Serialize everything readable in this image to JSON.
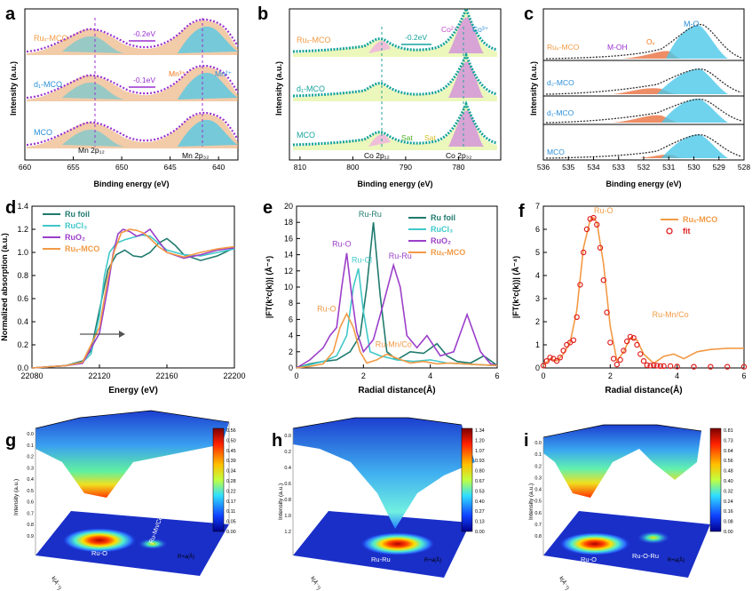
{
  "figure": {
    "colors": {
      "ruFoil": "#1f7a6e",
      "rucl3": "#41c8c8",
      "ruo2": "#9b3fc9",
      "ruxMco": "#f29a45",
      "fitRed": "#e02020",
      "envelope": "#9b30d0",
      "teal": "#17a39b",
      "tealDark": "#2aa39a"
    }
  },
  "chart_data": [
    {
      "panel": "a",
      "type": "line",
      "title": "",
      "xlabel": "Binding energy (eV)",
      "ylabel": "Intensity (a.u.)",
      "xlim": [
        660,
        638
      ],
      "xticks": [
        660,
        655,
        650,
        645,
        640
      ],
      "xtick_labels": [
        "660",
        "655",
        "650",
        "645",
        "640"
      ],
      "series_labels": [
        "Ruₓ-MCO",
        "d₁-MCO",
        "MCO"
      ],
      "annotations": [
        "-0.2eV",
        "-0.1eV",
        "Mn³⁺",
        "Mn²⁺",
        "Mn 2p₁₂",
        "Mn 2p₃₂"
      ]
    },
    {
      "panel": "b",
      "type": "line",
      "xlabel": "Binding energy (eV)",
      "ylabel": "Intensity (a.u.)",
      "xlim": [
        812,
        772
      ],
      "xticks": [
        810,
        800,
        790,
        780
      ],
      "xtick_labels": [
        "810",
        "800",
        "790",
        "780"
      ],
      "series_labels": [
        "Ruₓ-MCO",
        "d₁-MCO",
        "MCO"
      ],
      "annotations": [
        "-0.2eV",
        "Co²⁺",
        "Co³⁺",
        "Sat",
        "Sat",
        "Co 2p₁₂",
        "Co 2p₃₂"
      ]
    },
    {
      "panel": "c",
      "type": "line",
      "xlabel": "Binding energy (eV)",
      "ylabel": "Intensity (a.u.)",
      "xlim": [
        536,
        528
      ],
      "xticks": [
        536,
        535,
        534,
        533,
        532,
        531,
        530,
        529,
        528
      ],
      "xtick_labels": [
        "536",
        "535",
        "534",
        "533",
        "532",
        "531",
        "530",
        "529",
        "528"
      ],
      "series_labels": [
        "Ruₓ-MCO",
        "d₂-MCO",
        "d₁-MCO",
        "MCO"
      ],
      "annotations": [
        "M-O",
        "M-OH",
        "Oᵥ"
      ]
    },
    {
      "panel": "d",
      "type": "line",
      "xlabel": "Energy (eV)",
      "ylabel": "Normalized absorption (a.u.)",
      "xlim": [
        22080,
        22200
      ],
      "ylim": [
        0,
        1.4
      ],
      "xticks": [
        22080,
        22120,
        22160,
        22200
      ],
      "xtick_labels": [
        "22080",
        "22120",
        "22160",
        "22200"
      ],
      "yticks": [
        0,
        0.2,
        0.4,
        0.6,
        0.8,
        1.0,
        1.2,
        1.4
      ],
      "ytick_labels": [
        "0.0",
        "0.2",
        "0.4",
        "0.6",
        "0.8",
        "1.0",
        "1.2",
        "1.4"
      ],
      "legend": [
        "Ru foil",
        "RuCl₃",
        "RuO₂",
        "Ruₓ-MCO"
      ],
      "series": [
        {
          "name": "Ru foil",
          "x": [
            22080,
            22100,
            22110,
            22115,
            22120,
            22125,
            22130,
            22135,
            22140,
            22145,
            22150,
            22155,
            22160,
            22165,
            22170,
            22180,
            22190,
            22200
          ],
          "y": [
            0,
            0.02,
            0.06,
            0.15,
            0.5,
            0.85,
            0.98,
            1.02,
            0.97,
            0.96,
            1.0,
            1.08,
            1.12,
            1.06,
            0.98,
            0.93,
            0.97,
            1.04
          ]
        },
        {
          "name": "RuCl₃",
          "x": [
            22080,
            22100,
            22110,
            22115,
            22120,
            22123,
            22126,
            22130,
            22135,
            22140,
            22145,
            22150,
            22155,
            22160,
            22170,
            22180,
            22190,
            22200
          ],
          "y": [
            0,
            0.02,
            0.05,
            0.12,
            0.45,
            0.8,
            1.0,
            1.08,
            1.11,
            1.13,
            1.15,
            1.14,
            1.08,
            1.02,
            0.98,
            0.97,
            1.0,
            1.03
          ]
        },
        {
          "name": "RuO₂",
          "x": [
            22080,
            22100,
            22110,
            22120,
            22125,
            22128,
            22131,
            22134,
            22138,
            22142,
            22146,
            22150,
            22155,
            22160,
            22170,
            22180,
            22190,
            22200
          ],
          "y": [
            0,
            0.02,
            0.04,
            0.3,
            0.7,
            0.98,
            1.16,
            1.2,
            1.18,
            1.14,
            1.16,
            1.2,
            1.1,
            1.0,
            0.95,
            0.98,
            1.02,
            1.04
          ]
        },
        {
          "name": "Ruₓ-MCO",
          "x": [
            22080,
            22100,
            22110,
            22120,
            22125,
            22129,
            22133,
            22138,
            22142,
            22146,
            22150,
            22155,
            22160,
            22170,
            22180,
            22190,
            22200
          ],
          "y": [
            0,
            0.02,
            0.05,
            0.35,
            0.78,
            1.02,
            1.17,
            1.2,
            1.19,
            1.17,
            1.12,
            1.05,
            1.0,
            0.96,
            1.0,
            1.03,
            1.05
          ]
        }
      ]
    },
    {
      "panel": "e",
      "type": "line",
      "xlabel": "Radial distance(Å)",
      "ylabel": "|FT(k³c(k))| (Å⁻⁴)",
      "xlim": [
        0,
        6
      ],
      "ylim": [
        0,
        20
      ],
      "xticks": [
        0,
        2,
        4,
        6
      ],
      "xtick_labels": [
        "0",
        "2",
        "4",
        "6"
      ],
      "yticks": [
        0,
        2,
        4,
        6,
        8,
        10,
        12,
        14,
        16,
        18,
        20
      ],
      "ytick_labels": [
        "0",
        "2",
        "4",
        "6",
        "8",
        "10",
        "12",
        "14",
        "16",
        "18",
        "20"
      ],
      "legend": [
        "Ru foil",
        "RuCl₃",
        "RuO₂",
        "Ruₓ-MCO"
      ],
      "annotations": [
        "Ru-Ru",
        "Ru-O",
        "Ru-Cl",
        "Ru-Ru",
        "Ru-O",
        "Ru-Mn/Co"
      ],
      "series": [
        {
          "name": "Ru foil",
          "x": [
            0,
            0.4,
            0.8,
            1.2,
            1.6,
            1.9,
            2.1,
            2.3,
            2.5,
            2.7,
            3.0,
            3.4,
            3.8,
            4.2,
            4.5,
            4.8,
            5.2,
            5.6,
            6.0
          ],
          "y": [
            0,
            0.5,
            0.8,
            1.0,
            2.0,
            4.0,
            10.0,
            18.0,
            9.0,
            2.0,
            1.0,
            2.0,
            1.8,
            3.0,
            1.5,
            0.8,
            0.6,
            1.5,
            0.3
          ]
        },
        {
          "name": "RuCl₃",
          "x": [
            0,
            0.4,
            0.8,
            1.2,
            1.5,
            1.7,
            1.85,
            2.0,
            2.2,
            2.5,
            3.0,
            3.5,
            4.0,
            4.5,
            5.0,
            5.5,
            6.0
          ],
          "y": [
            0,
            0.4,
            0.8,
            1.5,
            4.0,
            10.0,
            12.3,
            7.0,
            2.0,
            1.5,
            1.0,
            0.8,
            1.0,
            0.6,
            0.5,
            0.4,
            0.3
          ]
        },
        {
          "name": "RuO₂",
          "x": [
            0,
            0.4,
            0.8,
            1.0,
            1.2,
            1.35,
            1.5,
            1.65,
            1.8,
            2.0,
            2.3,
            2.6,
            2.9,
            3.1,
            3.3,
            3.6,
            3.9,
            4.3,
            4.7,
            5.1,
            5.5,
            5.8,
            6.0
          ],
          "y": [
            0,
            1.0,
            2.5,
            4.0,
            5.0,
            10.0,
            14.2,
            9.0,
            4.5,
            2.0,
            3.5,
            8.0,
            12.7,
            10.0,
            4.0,
            2.5,
            4.0,
            1.5,
            2.0,
            6.6,
            2.0,
            0.5,
            0.3
          ]
        },
        {
          "name": "Ruₓ-MCO",
          "x": [
            0,
            0.4,
            0.8,
            1.1,
            1.3,
            1.5,
            1.7,
            1.9,
            2.1,
            2.4,
            2.7,
            3.0,
            3.4,
            3.8,
            4.2,
            4.6,
            5.0,
            5.5,
            6.0
          ],
          "y": [
            0,
            0.2,
            0.5,
            2.0,
            5.0,
            6.7,
            5.0,
            2.0,
            0.6,
            1.0,
            1.7,
            1.2,
            0.6,
            0.8,
            0.5,
            0.6,
            0.5,
            0.4,
            0.3
          ]
        }
      ]
    },
    {
      "panel": "f",
      "type": "line",
      "xlabel": "Radial distance(Å)",
      "ylabel": "|FT(k³c(k))| (Å⁻⁴)",
      "xlim": [
        0,
        6
      ],
      "ylim": [
        0,
        7
      ],
      "xticks": [
        0,
        2,
        4,
        6
      ],
      "xtick_labels": [
        "0",
        "2",
        "4",
        "6"
      ],
      "yticks": [
        0,
        1,
        2,
        3,
        4,
        5,
        6,
        7
      ],
      "ytick_labels": [
        "0",
        "1",
        "2",
        "3",
        "4",
        "5",
        "6",
        "7"
      ],
      "legend": [
        "Ruₓ-MCO",
        "fit"
      ],
      "annotations": [
        "Ru-O",
        "Ru-Mn/Co"
      ],
      "series": [
        {
          "name": "Ruₓ-MCO",
          "x": [
            0,
            0.2,
            0.4,
            0.6,
            0.8,
            1.0,
            1.2,
            1.4,
            1.5,
            1.6,
            1.8,
            2.0,
            2.2,
            2.4,
            2.6,
            2.8,
            3.0,
            3.3,
            3.6,
            3.9,
            4.2,
            4.6,
            5.0,
            5.5,
            6.0
          ],
          "y": [
            0.1,
            0.4,
            0.3,
            0.6,
            1.1,
            2.5,
            5.2,
            6.4,
            6.5,
            6.3,
            4.5,
            1.8,
            0.3,
            0.7,
            1.3,
            1.2,
            0.6,
            0.2,
            0.5,
            0.6,
            0.4,
            0.7,
            0.8,
            0.85,
            0.85
          ]
        },
        {
          "name": "fit",
          "x": [
            0,
            0.1,
            0.2,
            0.3,
            0.4,
            0.5,
            0.6,
            0.7,
            0.8,
            0.9,
            1.0,
            1.1,
            1.2,
            1.3,
            1.4,
            1.5,
            1.6,
            1.7,
            1.8,
            1.9,
            2.0,
            2.1,
            2.2,
            2.3,
            2.4,
            2.5,
            2.6,
            2.7,
            2.8,
            2.9,
            3.0,
            3.1,
            3.2,
            3.3,
            3.4,
            3.5,
            3.6,
            3.8,
            4.0,
            4.5,
            5.0,
            5.5,
            6.0
          ],
          "y": [
            0.1,
            0.3,
            0.45,
            0.4,
            0.3,
            0.45,
            0.75,
            1.0,
            1.1,
            1.2,
            2.2,
            3.6,
            5.0,
            6.0,
            6.45,
            6.5,
            6.2,
            5.2,
            3.8,
            2.4,
            1.1,
            0.4,
            0.15,
            0.35,
            0.75,
            1.15,
            1.35,
            1.3,
            1.0,
            0.6,
            0.3,
            0.12,
            0.1,
            0.12,
            0.1,
            0.08,
            0.08,
            0.08,
            0.06,
            0.05,
            0.05,
            0.05,
            0.05
          ]
        }
      ]
    },
    {
      "panel": "g",
      "type": "heatmap",
      "title": "",
      "zlabel": "Intensity (a.u.)",
      "xlabel": "k(Å⁻¹)",
      "ylabel": "R+a(Å)",
      "colorbar": [
        0.56,
        0.5,
        0.45,
        0.39,
        0.34,
        0.28,
        0.22,
        0.17,
        0.11,
        0.05,
        0.0
      ],
      "colorbar_labels": [
        "0.56",
        "0.50",
        "0.45",
        "0.39",
        "0.34",
        "0.28",
        "0.22",
        "0.17",
        "0.11",
        "0.05",
        "0.00"
      ],
      "z_ticks": [
        "0.0",
        "0.1",
        "0.2",
        "0.3",
        "0.4",
        "0.5",
        "0.6",
        "0.7",
        "0.8",
        "0.9"
      ],
      "annotations": [
        "Ru-O",
        "Ru-Mn/Co"
      ]
    },
    {
      "panel": "h",
      "type": "heatmap",
      "zlabel": "Intensity (a.u.)",
      "xlabel": "k(Å⁻¹)",
      "ylabel": "R+a(Å)",
      "colorbar": [
        1.34,
        1.2,
        1.07,
        0.93,
        0.8,
        0.67,
        0.53,
        0.4,
        0.27,
        0.13,
        0.0
      ],
      "colorbar_labels": [
        "1.34",
        "1.20",
        "1.07",
        "0.93",
        "0.80",
        "0.67",
        "0.53",
        "0.40",
        "0.27",
        "0.13",
        "0.00"
      ],
      "z_ticks": [
        "0.0",
        "0.2",
        "0.4",
        "0.6",
        "0.8",
        "1.0",
        "1.2"
      ],
      "annotations": [
        "Ru-Ru"
      ]
    },
    {
      "panel": "i",
      "type": "heatmap",
      "zlabel": "Intensity (a.u.)",
      "xlabel": "k(Å⁻¹)",
      "ylabel": "R+a(Å)",
      "colorbar": [
        0.81,
        0.73,
        0.64,
        0.56,
        0.48,
        0.4,
        0.32,
        0.24,
        0.16,
        0.08,
        0.0
      ],
      "colorbar_labels": [
        "0.81",
        "0.73",
        "0.64",
        "0.56",
        "0.48",
        "0.40",
        "0.32",
        "0.24",
        "0.16",
        "0.08",
        "0.00"
      ],
      "z_ticks": [
        "0.0",
        "0.1",
        "0.2",
        "0.3",
        "0.4",
        "0.5",
        "0.6",
        "0.7",
        "0.8"
      ],
      "annotations": [
        "Ru-O",
        "Ru-O-Ru"
      ]
    }
  ]
}
